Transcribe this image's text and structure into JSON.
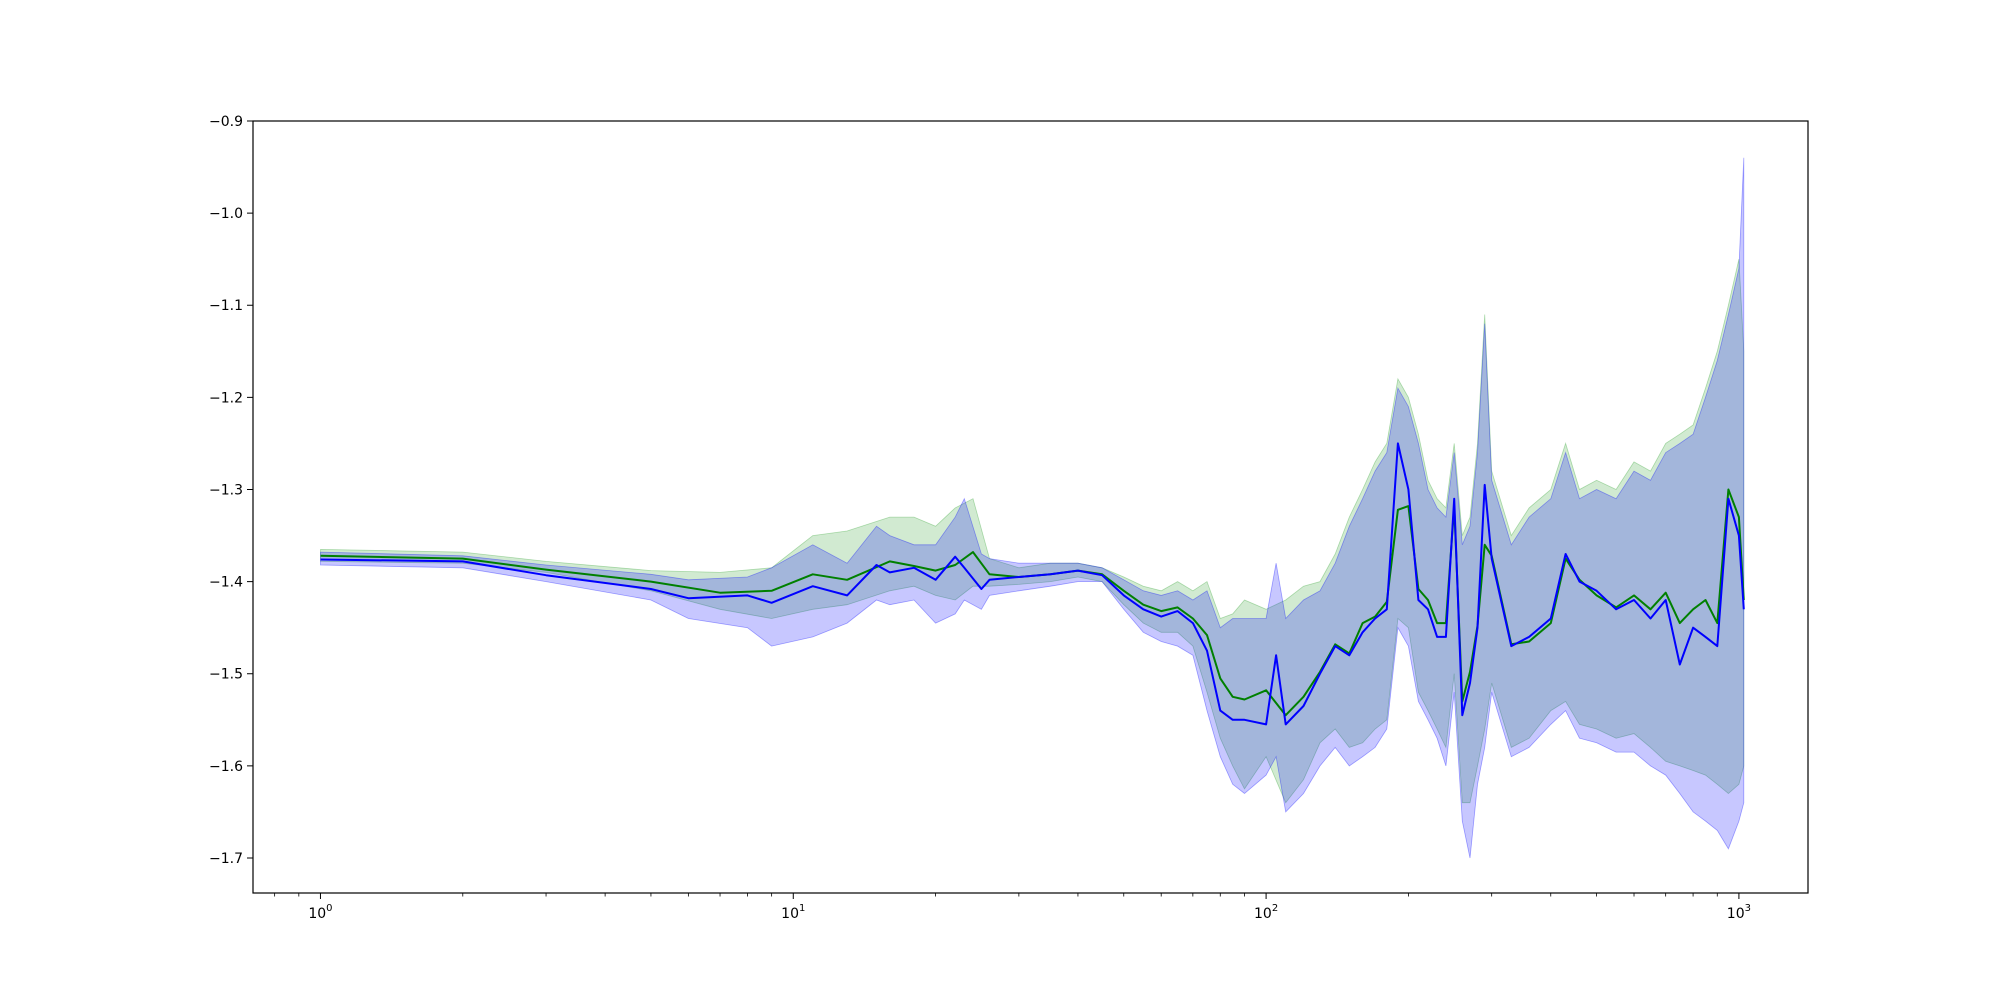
{
  "chart_data": {
    "type": "line",
    "title": "",
    "xlabel": "",
    "ylabel": "",
    "x_scale": "log",
    "xlim": [
      0.72,
      1400
    ],
    "ylim": [
      -1.738,
      -0.9
    ],
    "grid": false,
    "legend": "none",
    "x_ticks": [
      {
        "value": 1,
        "base": "10",
        "exp": "0"
      },
      {
        "value": 10,
        "base": "10",
        "exp": "1"
      },
      {
        "value": 100,
        "base": "10",
        "exp": "2"
      },
      {
        "value": 1000,
        "base": "10",
        "exp": "3"
      }
    ],
    "y_ticks": [
      {
        "value": -0.9,
        "label": "−0.9"
      },
      {
        "value": -1.0,
        "label": "−1.0"
      },
      {
        "value": -1.1,
        "label": "−1.1"
      },
      {
        "value": -1.2,
        "label": "−1.2"
      },
      {
        "value": -1.3,
        "label": "−1.3"
      },
      {
        "value": -1.4,
        "label": "−1.4"
      },
      {
        "value": -1.5,
        "label": "−1.5"
      },
      {
        "value": -1.6,
        "label": "−1.6"
      },
      {
        "value": -1.7,
        "label": "−1.7"
      }
    ],
    "series": [
      {
        "color": "#008000",
        "band_color": "#2ca02c",
        "x": [
          1,
          2,
          3,
          5,
          7,
          9,
          11,
          13,
          16,
          18,
          20,
          22,
          24,
          26,
          30,
          35,
          40,
          45,
          50,
          55,
          60,
          65,
          70,
          75,
          80,
          85,
          90,
          100,
          110,
          120,
          130,
          140,
          150,
          160,
          170,
          180,
          190,
          200,
          210,
          220,
          230,
          240,
          250,
          260,
          270,
          280,
          290,
          300,
          330,
          360,
          400,
          430,
          460,
          500,
          550,
          600,
          650,
          700,
          750,
          800,
          850,
          900,
          950,
          1000,
          1024
        ],
        "y": [
          -1.372,
          -1.375,
          -1.387,
          -1.4,
          -1.412,
          -1.41,
          -1.392,
          -1.398,
          -1.378,
          -1.383,
          -1.388,
          -1.382,
          -1.368,
          -1.392,
          -1.395,
          -1.392,
          -1.388,
          -1.392,
          -1.41,
          -1.425,
          -1.432,
          -1.428,
          -1.44,
          -1.458,
          -1.505,
          -1.525,
          -1.528,
          -1.518,
          -1.545,
          -1.525,
          -1.498,
          -1.468,
          -1.478,
          -1.445,
          -1.438,
          -1.422,
          -1.322,
          -1.318,
          -1.408,
          -1.42,
          -1.445,
          -1.445,
          -1.318,
          -1.53,
          -1.498,
          -1.448,
          -1.36,
          -1.372,
          -1.468,
          -1.465,
          -1.445,
          -1.375,
          -1.398,
          -1.415,
          -1.428,
          -1.415,
          -1.43,
          -1.412,
          -1.445,
          -1.43,
          -1.42,
          -1.445,
          -1.3,
          -1.33,
          -1.42
        ],
        "lower": [
          -1.378,
          -1.38,
          -1.39,
          -1.41,
          -1.43,
          -1.44,
          -1.43,
          -1.425,
          -1.41,
          -1.405,
          -1.415,
          -1.42,
          -1.405,
          -1.405,
          -1.403,
          -1.4,
          -1.395,
          -1.4,
          -1.425,
          -1.445,
          -1.455,
          -1.455,
          -1.47,
          -1.52,
          -1.57,
          -1.6,
          -1.625,
          -1.59,
          -1.64,
          -1.615,
          -1.575,
          -1.56,
          -1.58,
          -1.575,
          -1.56,
          -1.55,
          -1.44,
          -1.45,
          -1.52,
          -1.54,
          -1.56,
          -1.58,
          -1.5,
          -1.64,
          -1.64,
          -1.6,
          -1.56,
          -1.51,
          -1.58,
          -1.57,
          -1.54,
          -1.53,
          -1.555,
          -1.56,
          -1.57,
          -1.565,
          -1.58,
          -1.595,
          -1.6,
          -1.605,
          -1.61,
          -1.62,
          -1.63,
          -1.62,
          -1.6
        ],
        "upper": [
          -1.365,
          -1.368,
          -1.378,
          -1.388,
          -1.39,
          -1.385,
          -1.35,
          -1.345,
          -1.33,
          -1.33,
          -1.34,
          -1.32,
          -1.31,
          -1.375,
          -1.385,
          -1.38,
          -1.38,
          -1.385,
          -1.395,
          -1.405,
          -1.41,
          -1.4,
          -1.41,
          -1.4,
          -1.44,
          -1.435,
          -1.42,
          -1.43,
          -1.42,
          -1.405,
          -1.4,
          -1.37,
          -1.33,
          -1.3,
          -1.27,
          -1.25,
          -1.18,
          -1.2,
          -1.24,
          -1.29,
          -1.31,
          -1.32,
          -1.25,
          -1.35,
          -1.33,
          -1.25,
          -1.11,
          -1.28,
          -1.35,
          -1.32,
          -1.3,
          -1.25,
          -1.3,
          -1.29,
          -1.3,
          -1.27,
          -1.28,
          -1.25,
          -1.24,
          -1.23,
          -1.19,
          -1.15,
          -1.1,
          -1.05,
          -1.15
        ]
      },
      {
        "color": "#0000ff",
        "band_color": "#0000ff",
        "x": [
          1,
          2,
          3,
          5,
          6,
          8,
          9,
          11,
          13,
          15,
          16,
          18,
          20,
          22,
          23,
          25,
          26,
          30,
          35,
          40,
          45,
          50,
          55,
          60,
          65,
          70,
          75,
          80,
          85,
          90,
          100,
          105,
          110,
          120,
          130,
          140,
          150,
          160,
          170,
          180,
          190,
          200,
          210,
          220,
          230,
          240,
          250,
          260,
          270,
          280,
          290,
          300,
          330,
          360,
          400,
          430,
          460,
          500,
          550,
          600,
          650,
          700,
          750,
          800,
          850,
          900,
          950,
          1000,
          1024
        ],
        "y": [
          -1.376,
          -1.378,
          -1.393,
          -1.408,
          -1.418,
          -1.415,
          -1.423,
          -1.405,
          -1.415,
          -1.382,
          -1.39,
          -1.385,
          -1.398,
          -1.373,
          -1.385,
          -1.408,
          -1.398,
          -1.395,
          -1.392,
          -1.388,
          -1.393,
          -1.415,
          -1.43,
          -1.438,
          -1.432,
          -1.445,
          -1.475,
          -1.54,
          -1.55,
          -1.55,
          -1.555,
          -1.48,
          -1.555,
          -1.535,
          -1.5,
          -1.47,
          -1.48,
          -1.455,
          -1.44,
          -1.43,
          -1.25,
          -1.3,
          -1.42,
          -1.43,
          -1.46,
          -1.46,
          -1.31,
          -1.545,
          -1.51,
          -1.45,
          -1.295,
          -1.375,
          -1.47,
          -1.46,
          -1.44,
          -1.37,
          -1.4,
          -1.41,
          -1.43,
          -1.42,
          -1.44,
          -1.42,
          -1.49,
          -1.45,
          -1.46,
          -1.47,
          -1.31,
          -1.35,
          -1.43
        ],
        "lower": [
          -1.382,
          -1.385,
          -1.4,
          -1.42,
          -1.44,
          -1.45,
          -1.47,
          -1.46,
          -1.445,
          -1.42,
          -1.425,
          -1.42,
          -1.445,
          -1.435,
          -1.42,
          -1.43,
          -1.415,
          -1.41,
          -1.405,
          -1.4,
          -1.4,
          -1.43,
          -1.455,
          -1.465,
          -1.47,
          -1.48,
          -1.54,
          -1.59,
          -1.62,
          -1.63,
          -1.61,
          -1.59,
          -1.65,
          -1.63,
          -1.6,
          -1.58,
          -1.6,
          -1.59,
          -1.58,
          -1.56,
          -1.45,
          -1.47,
          -1.53,
          -1.55,
          -1.57,
          -1.6,
          -1.52,
          -1.66,
          -1.7,
          -1.62,
          -1.58,
          -1.52,
          -1.59,
          -1.58,
          -1.555,
          -1.54,
          -1.57,
          -1.575,
          -1.585,
          -1.585,
          -1.6,
          -1.61,
          -1.63,
          -1.65,
          -1.66,
          -1.67,
          -1.69,
          -1.66,
          -1.64
        ],
        "upper": [
          -1.368,
          -1.372,
          -1.382,
          -1.392,
          -1.398,
          -1.395,
          -1.385,
          -1.36,
          -1.38,
          -1.34,
          -1.35,
          -1.36,
          -1.36,
          -1.33,
          -1.31,
          -1.37,
          -1.375,
          -1.38,
          -1.38,
          -1.38,
          -1.385,
          -1.398,
          -1.41,
          -1.415,
          -1.41,
          -1.42,
          -1.41,
          -1.45,
          -1.44,
          -1.44,
          -1.44,
          -1.38,
          -1.44,
          -1.42,
          -1.41,
          -1.38,
          -1.34,
          -1.31,
          -1.28,
          -1.26,
          -1.19,
          -1.21,
          -1.25,
          -1.3,
          -1.32,
          -1.33,
          -1.26,
          -1.36,
          -1.34,
          -1.26,
          -1.12,
          -1.29,
          -1.36,
          -1.33,
          -1.31,
          -1.26,
          -1.31,
          -1.3,
          -1.31,
          -1.28,
          -1.29,
          -1.26,
          -1.25,
          -1.24,
          -1.2,
          -1.16,
          -1.11,
          -1.06,
          -0.94
        ]
      }
    ]
  }
}
